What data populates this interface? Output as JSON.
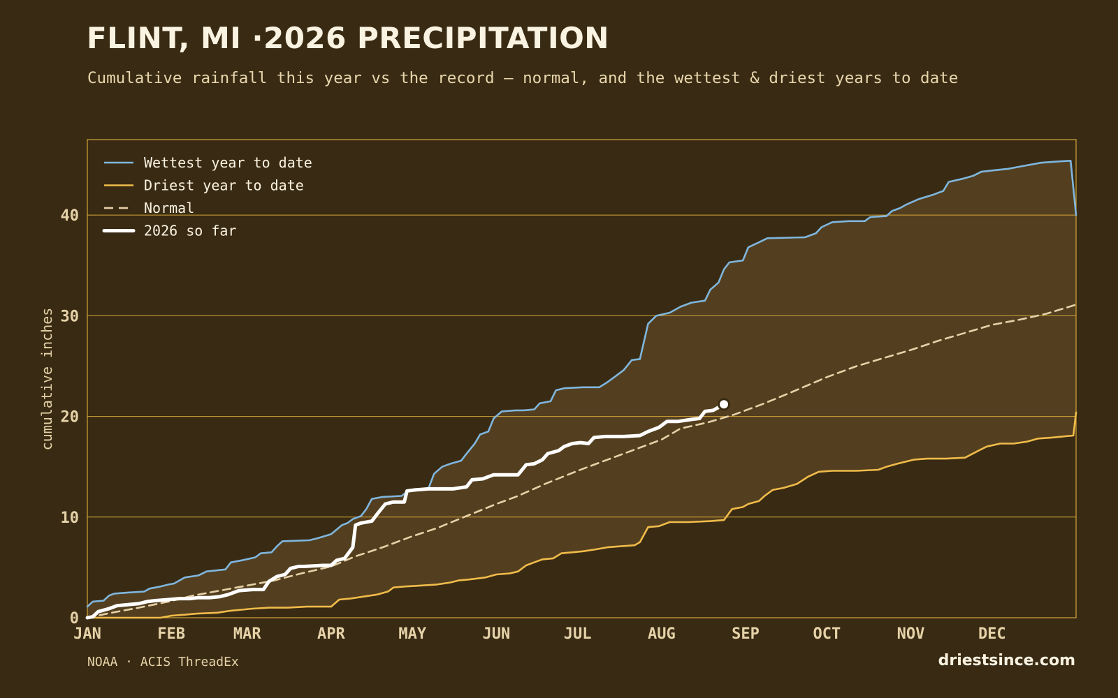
{
  "title": "FLINT, MI ·2026 PRECIPITATION",
  "subtitle": "Cumulative rainfall this year vs the record — normal, and the wettest & driest years to date",
  "source": "NOAA · ACIS ThreadEx",
  "brand": "driestsince.com",
  "colors": {
    "background": "#392b13",
    "band_fill": "#533f1f",
    "frame": "#d4a63a",
    "wettest": "#7fb6de",
    "driest": "#f0bb4a",
    "normal": "#e6d2a8",
    "current": "#ffffff"
  },
  "chart_data": {
    "type": "line",
    "title": "FLINT, MI ·2026 PRECIPITATION",
    "ylabel": "cumulative inches",
    "xlabel": "",
    "x_unit": "day of year",
    "xlim": [
      1,
      366
    ],
    "ylim": [
      0,
      47.5
    ],
    "yticks": [
      0,
      10,
      20,
      30,
      40
    ],
    "month_ticks": [
      {
        "label": "JAN",
        "day": 1
      },
      {
        "label": "FEB",
        "day": 32
      },
      {
        "label": "MAR",
        "day": 60
      },
      {
        "label": "APR",
        "day": 91
      },
      {
        "label": "MAY",
        "day": 121
      },
      {
        "label": "JUN",
        "day": 152
      },
      {
        "label": "JUL",
        "day": 182
      },
      {
        "label": "AUG",
        "day": 213
      },
      {
        "label": "SEP",
        "day": 244
      },
      {
        "label": "OCT",
        "day": 274
      },
      {
        "label": "NOV",
        "day": 305
      },
      {
        "label": "DEC",
        "day": 335
      }
    ],
    "grid": "horizontal",
    "legend_position": "top-left",
    "band": {
      "upper": "Wettest year to date",
      "lower": "Driest year to date"
    },
    "series": [
      {
        "name": "Wettest year to date",
        "style": "solid",
        "points": [
          [
            1,
            1.1
          ],
          [
            3,
            1.6
          ],
          [
            7,
            1.7
          ],
          [
            9,
            2.2
          ],
          [
            11,
            2.4
          ],
          [
            16,
            2.5
          ],
          [
            22,
            2.6
          ],
          [
            24,
            2.9
          ],
          [
            28,
            3.1
          ],
          [
            31,
            3.3
          ],
          [
            33,
            3.4
          ],
          [
            37,
            4.0
          ],
          [
            42,
            4.2
          ],
          [
            45,
            4.6
          ],
          [
            52,
            4.8
          ],
          [
            54,
            5.5
          ],
          [
            58,
            5.7
          ],
          [
            63,
            6.0
          ],
          [
            65,
            6.4
          ],
          [
            69,
            6.5
          ],
          [
            71,
            7.1
          ],
          [
            73,
            7.6
          ],
          [
            83,
            7.7
          ],
          [
            86,
            7.9
          ],
          [
            91,
            8.3
          ],
          [
            95,
            9.2
          ],
          [
            97,
            9.4
          ],
          [
            99,
            9.8
          ],
          [
            102,
            10.1
          ],
          [
            104,
            10.8
          ],
          [
            106,
            11.8
          ],
          [
            110,
            12.0
          ],
          [
            117,
            12.1
          ],
          [
            119,
            12.5
          ],
          [
            121,
            12.7
          ],
          [
            127,
            12.9
          ],
          [
            129,
            14.3
          ],
          [
            132,
            15.0
          ],
          [
            135,
            15.3
          ],
          [
            139,
            15.6
          ],
          [
            141,
            16.3
          ],
          [
            144,
            17.3
          ],
          [
            146,
            18.2
          ],
          [
            149,
            18.5
          ],
          [
            151,
            19.8
          ],
          [
            154,
            20.5
          ],
          [
            159,
            20.6
          ],
          [
            162,
            20.6
          ],
          [
            166,
            20.7
          ],
          [
            168,
            21.3
          ],
          [
            172,
            21.5
          ],
          [
            174,
            22.6
          ],
          [
            177,
            22.8
          ],
          [
            184,
            22.9
          ],
          [
            190,
            22.9
          ],
          [
            193,
            23.4
          ],
          [
            196,
            24.0
          ],
          [
            199,
            24.6
          ],
          [
            202,
            25.6
          ],
          [
            205,
            25.7
          ],
          [
            208,
            29.2
          ],
          [
            211,
            30.0
          ],
          [
            216,
            30.3
          ],
          [
            220,
            30.9
          ],
          [
            224,
            31.3
          ],
          [
            229,
            31.5
          ],
          [
            231,
            32.6
          ],
          [
            234,
            33.3
          ],
          [
            236,
            34.6
          ],
          [
            238,
            35.3
          ],
          [
            243,
            35.5
          ],
          [
            245,
            36.8
          ],
          [
            249,
            37.3
          ],
          [
            252,
            37.7
          ],
          [
            266,
            37.8
          ],
          [
            270,
            38.2
          ],
          [
            272,
            38.8
          ],
          [
            276,
            39.3
          ],
          [
            282,
            39.4
          ],
          [
            288,
            39.4
          ],
          [
            290,
            39.8
          ],
          [
            296,
            39.9
          ],
          [
            298,
            40.4
          ],
          [
            301,
            40.7
          ],
          [
            303,
            41.0
          ],
          [
            308,
            41.6
          ],
          [
            313,
            42.0
          ],
          [
            317,
            42.4
          ],
          [
            319,
            43.3
          ],
          [
            324,
            43.6
          ],
          [
            328,
            43.9
          ],
          [
            331,
            44.3
          ],
          [
            334,
            44.4
          ],
          [
            341,
            44.6
          ],
          [
            345,
            44.8
          ],
          [
            353,
            45.2
          ],
          [
            358,
            45.3
          ],
          [
            364,
            45.4
          ],
          [
            366,
            40.0
          ]
        ]
      },
      {
        "name": "Driest year to date",
        "style": "solid",
        "points": [
          [
            1,
            0.0
          ],
          [
            28,
            0.0
          ],
          [
            32,
            0.2
          ],
          [
            37,
            0.3
          ],
          [
            41,
            0.4
          ],
          [
            49,
            0.5
          ],
          [
            54,
            0.7
          ],
          [
            58,
            0.8
          ],
          [
            62,
            0.9
          ],
          [
            68,
            1.0
          ],
          [
            75,
            1.0
          ],
          [
            82,
            1.1
          ],
          [
            91,
            1.1
          ],
          [
            94,
            1.8
          ],
          [
            98,
            1.9
          ],
          [
            103,
            2.1
          ],
          [
            108,
            2.3
          ],
          [
            112,
            2.6
          ],
          [
            114,
            3.0
          ],
          [
            118,
            3.1
          ],
          [
            124,
            3.2
          ],
          [
            130,
            3.3
          ],
          [
            135,
            3.5
          ],
          [
            138,
            3.7
          ],
          [
            142,
            3.8
          ],
          [
            148,
            4.0
          ],
          [
            152,
            4.3
          ],
          [
            157,
            4.4
          ],
          [
            160,
            4.6
          ],
          [
            163,
            5.2
          ],
          [
            167,
            5.6
          ],
          [
            169,
            5.8
          ],
          [
            173,
            5.9
          ],
          [
            176,
            6.4
          ],
          [
            180,
            6.5
          ],
          [
            184,
            6.6
          ],
          [
            189,
            6.8
          ],
          [
            193,
            7.0
          ],
          [
            198,
            7.1
          ],
          [
            203,
            7.2
          ],
          [
            205,
            7.5
          ],
          [
            208,
            9.0
          ],
          [
            212,
            9.1
          ],
          [
            216,
            9.5
          ],
          [
            223,
            9.5
          ],
          [
            231,
            9.6
          ],
          [
            236,
            9.7
          ],
          [
            239,
            10.8
          ],
          [
            243,
            11.0
          ],
          [
            245,
            11.3
          ],
          [
            249,
            11.6
          ],
          [
            251,
            12.1
          ],
          [
            254,
            12.7
          ],
          [
            258,
            12.9
          ],
          [
            263,
            13.3
          ],
          [
            267,
            14.0
          ],
          [
            271,
            14.5
          ],
          [
            276,
            14.6
          ],
          [
            285,
            14.6
          ],
          [
            293,
            14.7
          ],
          [
            296,
            15.0
          ],
          [
            300,
            15.3
          ],
          [
            303,
            15.5
          ],
          [
            306,
            15.7
          ],
          [
            311,
            15.8
          ],
          [
            318,
            15.8
          ],
          [
            325,
            15.9
          ],
          [
            330,
            16.6
          ],
          [
            333,
            17.0
          ],
          [
            338,
            17.3
          ],
          [
            343,
            17.3
          ],
          [
            348,
            17.5
          ],
          [
            352,
            17.8
          ],
          [
            357,
            17.9
          ],
          [
            361,
            18.0
          ],
          [
            365,
            18.1
          ],
          [
            366,
            20.4
          ]
        ]
      },
      {
        "name": "Normal",
        "style": "dashed",
        "points": [
          [
            1,
            0.0
          ],
          [
            10,
            0.5
          ],
          [
            20,
            1.0
          ],
          [
            31,
            1.6
          ],
          [
            40,
            2.2
          ],
          [
            50,
            2.7
          ],
          [
            60,
            3.2
          ],
          [
            70,
            3.7
          ],
          [
            80,
            4.4
          ],
          [
            91,
            5.1
          ],
          [
            100,
            6.1
          ],
          [
            110,
            7.0
          ],
          [
            121,
            8.1
          ],
          [
            130,
            8.9
          ],
          [
            140,
            10.0
          ],
          [
            152,
            11.3
          ],
          [
            160,
            12.1
          ],
          [
            170,
            13.3
          ],
          [
            182,
            14.6
          ],
          [
            190,
            15.4
          ],
          [
            200,
            16.4
          ],
          [
            213,
            17.7
          ],
          [
            220,
            18.8
          ],
          [
            230,
            19.4
          ],
          [
            240,
            20.2
          ],
          [
            244,
            20.6
          ],
          [
            250,
            21.2
          ],
          [
            260,
            22.3
          ],
          [
            274,
            23.9
          ],
          [
            285,
            25.0
          ],
          [
            295,
            25.8
          ],
          [
            305,
            26.6
          ],
          [
            315,
            27.5
          ],
          [
            325,
            28.3
          ],
          [
            335,
            29.1
          ],
          [
            345,
            29.6
          ],
          [
            355,
            30.2
          ],
          [
            366,
            31.1
          ]
        ]
      },
      {
        "name": "2026 so far",
        "style": "solid-thick",
        "points": [
          [
            1,
            0.0
          ],
          [
            3,
            0.1
          ],
          [
            5,
            0.6
          ],
          [
            9,
            0.9
          ],
          [
            12,
            1.2
          ],
          [
            16,
            1.3
          ],
          [
            20,
            1.4
          ],
          [
            23,
            1.6
          ],
          [
            26,
            1.7
          ],
          [
            31,
            1.8
          ],
          [
            35,
            1.9
          ],
          [
            39,
            1.9
          ],
          [
            42,
            2.0
          ],
          [
            46,
            2.0
          ],
          [
            50,
            2.1
          ],
          [
            53,
            2.3
          ],
          [
            57,
            2.7
          ],
          [
            62,
            2.8
          ],
          [
            66,
            2.8
          ],
          [
            68,
            3.6
          ],
          [
            71,
            4.1
          ],
          [
            74,
            4.3
          ],
          [
            76,
            4.9
          ],
          [
            79,
            5.1
          ],
          [
            81,
            5.1
          ],
          [
            88,
            5.2
          ],
          [
            91,
            5.2
          ],
          [
            93,
            5.7
          ],
          [
            96,
            5.9
          ],
          [
            99,
            7.0
          ],
          [
            100,
            9.2
          ],
          [
            102,
            9.4
          ],
          [
            106,
            9.6
          ],
          [
            108,
            10.3
          ],
          [
            111,
            11.3
          ],
          [
            114,
            11.5
          ],
          [
            118,
            11.5
          ],
          [
            119,
            12.6
          ],
          [
            122,
            12.7
          ],
          [
            127,
            12.8
          ],
          [
            136,
            12.8
          ],
          [
            141,
            13.0
          ],
          [
            143,
            13.7
          ],
          [
            147,
            13.8
          ],
          [
            151,
            14.2
          ],
          [
            156,
            14.2
          ],
          [
            160,
            14.2
          ],
          [
            163,
            15.2
          ],
          [
            166,
            15.3
          ],
          [
            169,
            15.7
          ],
          [
            171,
            16.3
          ],
          [
            175,
            16.6
          ],
          [
            177,
            17.0
          ],
          [
            180,
            17.3
          ],
          [
            183,
            17.4
          ],
          [
            186,
            17.3
          ],
          [
            188,
            17.9
          ],
          [
            192,
            18.0
          ],
          [
            199,
            18.0
          ],
          [
            205,
            18.1
          ],
          [
            208,
            18.5
          ],
          [
            212,
            18.9
          ],
          [
            215,
            19.5
          ],
          [
            219,
            19.5
          ],
          [
            224,
            19.7
          ],
          [
            227,
            19.8
          ],
          [
            229,
            20.5
          ],
          [
            232,
            20.6
          ],
          [
            236,
            21.2
          ]
        ]
      }
    ],
    "current_marker": {
      "day": 236,
      "value": 21.2
    }
  }
}
